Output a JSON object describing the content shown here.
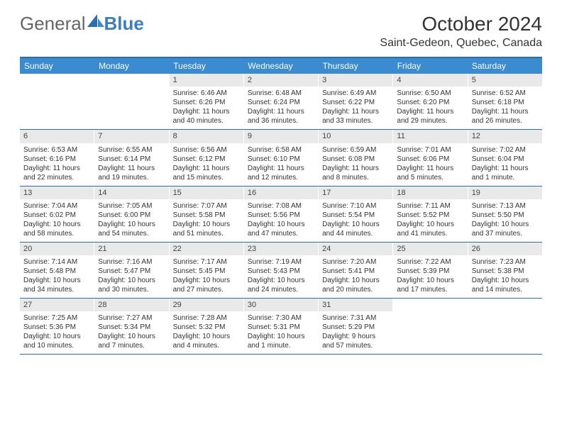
{
  "logo": {
    "part1": "General",
    "part2": "Blue"
  },
  "title": "October 2024",
  "location": "Saint-Gedeon, Quebec, Canada",
  "colors": {
    "header_bg": "#3a8bd0",
    "rule": "#2c6fb0",
    "daynum_bg": "#e9e9e9",
    "logo_blue": "#3a7fc4"
  },
  "day_labels": [
    "Sunday",
    "Monday",
    "Tuesday",
    "Wednesday",
    "Thursday",
    "Friday",
    "Saturday"
  ],
  "weeks": [
    [
      {
        "empty": true
      },
      {
        "empty": true
      },
      {
        "num": "1",
        "sunrise": "Sunrise: 6:46 AM",
        "sunset": "Sunset: 6:26 PM",
        "daylight": "Daylight: 11 hours and 40 minutes."
      },
      {
        "num": "2",
        "sunrise": "Sunrise: 6:48 AM",
        "sunset": "Sunset: 6:24 PM",
        "daylight": "Daylight: 11 hours and 36 minutes."
      },
      {
        "num": "3",
        "sunrise": "Sunrise: 6:49 AM",
        "sunset": "Sunset: 6:22 PM",
        "daylight": "Daylight: 11 hours and 33 minutes."
      },
      {
        "num": "4",
        "sunrise": "Sunrise: 6:50 AM",
        "sunset": "Sunset: 6:20 PM",
        "daylight": "Daylight: 11 hours and 29 minutes."
      },
      {
        "num": "5",
        "sunrise": "Sunrise: 6:52 AM",
        "sunset": "Sunset: 6:18 PM",
        "daylight": "Daylight: 11 hours and 26 minutes."
      }
    ],
    [
      {
        "num": "6",
        "sunrise": "Sunrise: 6:53 AM",
        "sunset": "Sunset: 6:16 PM",
        "daylight": "Daylight: 11 hours and 22 minutes."
      },
      {
        "num": "7",
        "sunrise": "Sunrise: 6:55 AM",
        "sunset": "Sunset: 6:14 PM",
        "daylight": "Daylight: 11 hours and 19 minutes."
      },
      {
        "num": "8",
        "sunrise": "Sunrise: 6:56 AM",
        "sunset": "Sunset: 6:12 PM",
        "daylight": "Daylight: 11 hours and 15 minutes."
      },
      {
        "num": "9",
        "sunrise": "Sunrise: 6:58 AM",
        "sunset": "Sunset: 6:10 PM",
        "daylight": "Daylight: 11 hours and 12 minutes."
      },
      {
        "num": "10",
        "sunrise": "Sunrise: 6:59 AM",
        "sunset": "Sunset: 6:08 PM",
        "daylight": "Daylight: 11 hours and 8 minutes."
      },
      {
        "num": "11",
        "sunrise": "Sunrise: 7:01 AM",
        "sunset": "Sunset: 6:06 PM",
        "daylight": "Daylight: 11 hours and 5 minutes."
      },
      {
        "num": "12",
        "sunrise": "Sunrise: 7:02 AM",
        "sunset": "Sunset: 6:04 PM",
        "daylight": "Daylight: 11 hours and 1 minute."
      }
    ],
    [
      {
        "num": "13",
        "sunrise": "Sunrise: 7:04 AM",
        "sunset": "Sunset: 6:02 PM",
        "daylight": "Daylight: 10 hours and 58 minutes."
      },
      {
        "num": "14",
        "sunrise": "Sunrise: 7:05 AM",
        "sunset": "Sunset: 6:00 PM",
        "daylight": "Daylight: 10 hours and 54 minutes."
      },
      {
        "num": "15",
        "sunrise": "Sunrise: 7:07 AM",
        "sunset": "Sunset: 5:58 PM",
        "daylight": "Daylight: 10 hours and 51 minutes."
      },
      {
        "num": "16",
        "sunrise": "Sunrise: 7:08 AM",
        "sunset": "Sunset: 5:56 PM",
        "daylight": "Daylight: 10 hours and 47 minutes."
      },
      {
        "num": "17",
        "sunrise": "Sunrise: 7:10 AM",
        "sunset": "Sunset: 5:54 PM",
        "daylight": "Daylight: 10 hours and 44 minutes."
      },
      {
        "num": "18",
        "sunrise": "Sunrise: 7:11 AM",
        "sunset": "Sunset: 5:52 PM",
        "daylight": "Daylight: 10 hours and 41 minutes."
      },
      {
        "num": "19",
        "sunrise": "Sunrise: 7:13 AM",
        "sunset": "Sunset: 5:50 PM",
        "daylight": "Daylight: 10 hours and 37 minutes."
      }
    ],
    [
      {
        "num": "20",
        "sunrise": "Sunrise: 7:14 AM",
        "sunset": "Sunset: 5:48 PM",
        "daylight": "Daylight: 10 hours and 34 minutes."
      },
      {
        "num": "21",
        "sunrise": "Sunrise: 7:16 AM",
        "sunset": "Sunset: 5:47 PM",
        "daylight": "Daylight: 10 hours and 30 minutes."
      },
      {
        "num": "22",
        "sunrise": "Sunrise: 7:17 AM",
        "sunset": "Sunset: 5:45 PM",
        "daylight": "Daylight: 10 hours and 27 minutes."
      },
      {
        "num": "23",
        "sunrise": "Sunrise: 7:19 AM",
        "sunset": "Sunset: 5:43 PM",
        "daylight": "Daylight: 10 hours and 24 minutes."
      },
      {
        "num": "24",
        "sunrise": "Sunrise: 7:20 AM",
        "sunset": "Sunset: 5:41 PM",
        "daylight": "Daylight: 10 hours and 20 minutes."
      },
      {
        "num": "25",
        "sunrise": "Sunrise: 7:22 AM",
        "sunset": "Sunset: 5:39 PM",
        "daylight": "Daylight: 10 hours and 17 minutes."
      },
      {
        "num": "26",
        "sunrise": "Sunrise: 7:23 AM",
        "sunset": "Sunset: 5:38 PM",
        "daylight": "Daylight: 10 hours and 14 minutes."
      }
    ],
    [
      {
        "num": "27",
        "sunrise": "Sunrise: 7:25 AM",
        "sunset": "Sunset: 5:36 PM",
        "daylight": "Daylight: 10 hours and 10 minutes."
      },
      {
        "num": "28",
        "sunrise": "Sunrise: 7:27 AM",
        "sunset": "Sunset: 5:34 PM",
        "daylight": "Daylight: 10 hours and 7 minutes."
      },
      {
        "num": "29",
        "sunrise": "Sunrise: 7:28 AM",
        "sunset": "Sunset: 5:32 PM",
        "daylight": "Daylight: 10 hours and 4 minutes."
      },
      {
        "num": "30",
        "sunrise": "Sunrise: 7:30 AM",
        "sunset": "Sunset: 5:31 PM",
        "daylight": "Daylight: 10 hours and 1 minute."
      },
      {
        "num": "31",
        "sunrise": "Sunrise: 7:31 AM",
        "sunset": "Sunset: 5:29 PM",
        "daylight": "Daylight: 9 hours and 57 minutes."
      },
      {
        "empty": true
      },
      {
        "empty": true
      }
    ]
  ]
}
